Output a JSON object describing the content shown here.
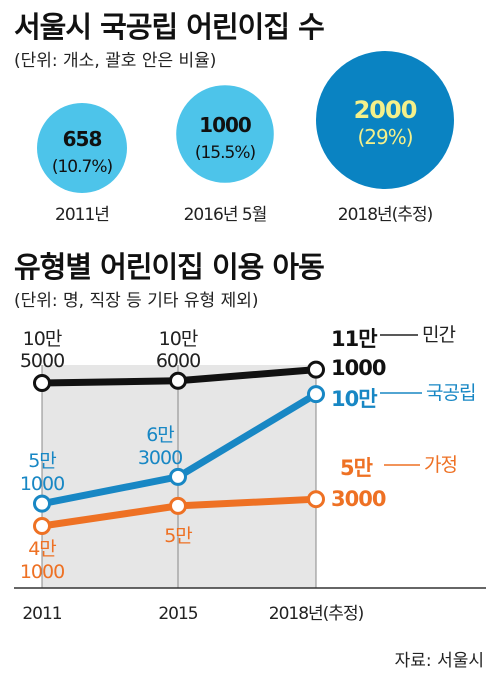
{
  "section1": {
    "title": "서울시 국공립 어린이집 수",
    "subtitle": "(단위: 개소, 괄호 안은 비율)"
  },
  "section2": {
    "title": "유형별 어린이집 이용 아동",
    "subtitle": "(단위: 명, 직장 등 기타 유형 제외)"
  },
  "source": "자료: 서울시",
  "colors": {
    "light_blue": "#4dc4ea",
    "dark_blue": "#0a83c2",
    "yellow": "#f4f08a",
    "black": "#111111",
    "blue_line": "#1887c4",
    "orange": "#ee7124",
    "shade": "#e6e6e6"
  },
  "chart_data": [
    {
      "type": "bubble",
      "categories": [
        "2011년",
        "2016년 5월",
        "2018년(추정)"
      ],
      "values": [
        658,
        1000,
        2000
      ],
      "value_labels": [
        "658",
        "1000",
        "2000"
      ],
      "share_labels": [
        "(10.7%)",
        "(15.5%)",
        "(29%)"
      ],
      "shares_pct": [
        10.7,
        15.5,
        29
      ]
    },
    {
      "type": "line",
      "x": [
        "2011",
        "2015",
        "2018년(추정)"
      ],
      "series": [
        {
          "name": "민간",
          "values": [
            105000,
            106000,
            111000
          ],
          "point_labels": [
            [
              "10만",
              "5000"
            ],
            [
              "10만",
              "6000"
            ],
            [
              "11만",
              "1000"
            ]
          ]
        },
        {
          "name": "국공립",
          "values": [
            51000,
            63000,
            100000
          ],
          "point_labels": [
            [
              "5만",
              "1000"
            ],
            [
              "6만",
              "3000"
            ],
            [
              "10만",
              ""
            ]
          ]
        },
        {
          "name": "가정",
          "values": [
            41000,
            50000,
            53000
          ],
          "point_labels": [
            [
              "4만",
              "1000"
            ],
            [
              "5만",
              ""
            ],
            [
              "5만",
              "3000"
            ]
          ]
        }
      ]
    }
  ]
}
